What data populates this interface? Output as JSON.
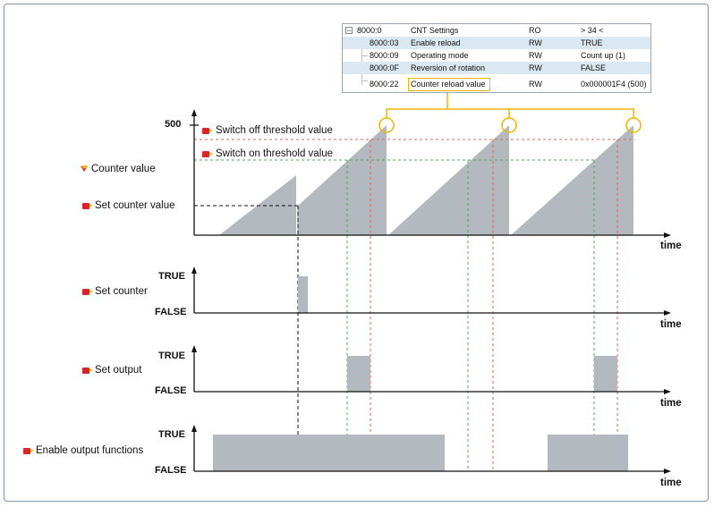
{
  "settings_table": {
    "rows": [
      {
        "index": "8000:0",
        "name": "CNT Settings",
        "flag": "RO",
        "value": "> 34 <"
      },
      {
        "index": "8000:03",
        "name": "Enable reload",
        "flag": "RW",
        "value": "TRUE"
      },
      {
        "index": "8000:09",
        "name": "Operating mode",
        "flag": "RW",
        "value": "Count up (1)"
      },
      {
        "index": "8000:0F",
        "name": "Reversion of rotation",
        "flag": "RW",
        "value": "FALSE"
      },
      {
        "index": "8000:22",
        "name": "Counter reload value",
        "flag": "RW",
        "value": "0x000001F4 (500)"
      }
    ],
    "expander": "−"
  },
  "counter_panel": {
    "y_max_label": "500",
    "switch_off_label": "Switch off threshold value",
    "switch_on_label": "Switch on threshold value",
    "counter_value_label": "Counter value",
    "set_counter_value_label": "Set counter value",
    "x_label": "time"
  },
  "set_counter_panel": {
    "label": "Set counter",
    "true_label": "TRUE",
    "false_label": "FALSE",
    "x_label": "time"
  },
  "set_output_panel": {
    "label": "Set output",
    "true_label": "TRUE",
    "false_label": "FALSE",
    "x_label": "time"
  },
  "enable_output_panel": {
    "label": "Enable output functions",
    "true_label": "TRUE",
    "false_label": "FALSE",
    "x_label": "time"
  },
  "colors": {
    "fill": "#b3b9be",
    "switch_off_line": "#e8644a",
    "switch_on_line": "#4caf50",
    "reload_highlight": "#f2b400",
    "axis": "#111111"
  }
}
